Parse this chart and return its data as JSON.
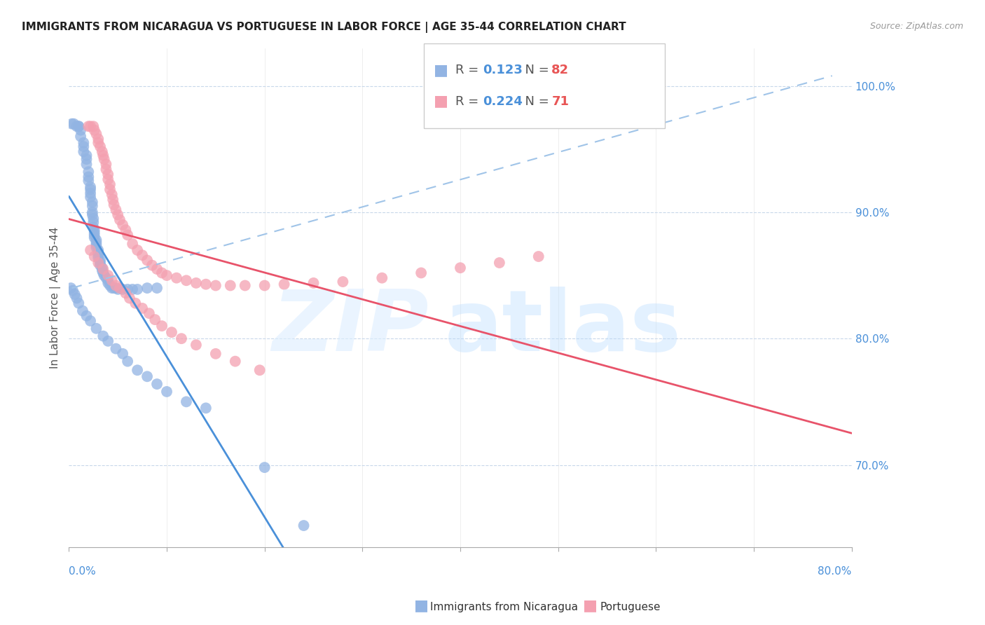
{
  "title": "IMMIGRANTS FROM NICARAGUA VS PORTUGUESE IN LABOR FORCE | AGE 35-44 CORRELATION CHART",
  "source": "Source: ZipAtlas.com",
  "ylabel": "In Labor Force | Age 35-44",
  "right_yticks": [
    0.7,
    0.8,
    0.9,
    1.0
  ],
  "right_yticklabels": [
    "70.0%",
    "80.0%",
    "90.0%",
    "100.0%"
  ],
  "xlim": [
    0.0,
    0.8
  ],
  "ylim": [
    0.635,
    1.03
  ],
  "nicaragua_R": 0.123,
  "nicaragua_N": 82,
  "portuguese_R": 0.224,
  "portuguese_N": 71,
  "nicaragua_color": "#92b4e3",
  "portuguese_color": "#f4a0b0",
  "nicaragua_line_color": "#4a90d9",
  "portuguese_line_color": "#e8536a",
  "dashed_line_color": "#a0c4e8",
  "legend_nicaragua_label": "Immigrants from Nicaragua",
  "legend_portuguese_label": "Portuguese",
  "nicaragua_x": [
    0.003,
    0.005,
    0.008,
    0.01,
    0.01,
    0.012,
    0.012,
    0.015,
    0.015,
    0.015,
    0.018,
    0.018,
    0.018,
    0.02,
    0.02,
    0.02,
    0.022,
    0.022,
    0.022,
    0.022,
    0.024,
    0.024,
    0.024,
    0.024,
    0.025,
    0.025,
    0.025,
    0.026,
    0.026,
    0.026,
    0.026,
    0.028,
    0.028,
    0.028,
    0.028,
    0.03,
    0.03,
    0.03,
    0.03,
    0.032,
    0.032,
    0.032,
    0.034,
    0.034,
    0.035,
    0.036,
    0.038,
    0.04,
    0.04,
    0.042,
    0.044,
    0.046,
    0.048,
    0.05,
    0.055,
    0.06,
    0.065,
    0.07,
    0.08,
    0.09,
    0.002,
    0.004,
    0.006,
    0.008,
    0.01,
    0.014,
    0.018,
    0.022,
    0.028,
    0.035,
    0.04,
    0.048,
    0.055,
    0.06,
    0.07,
    0.08,
    0.09,
    0.1,
    0.12,
    0.14,
    0.2,
    0.24
  ],
  "nicaragua_y": [
    0.97,
    0.97,
    0.968,
    0.968,
    0.968,
    0.965,
    0.96,
    0.955,
    0.952,
    0.948,
    0.945,
    0.942,
    0.938,
    0.932,
    0.928,
    0.925,
    0.92,
    0.918,
    0.915,
    0.912,
    0.908,
    0.905,
    0.9,
    0.898,
    0.895,
    0.892,
    0.888,
    0.886,
    0.884,
    0.882,
    0.88,
    0.878,
    0.876,
    0.874,
    0.872,
    0.87,
    0.868,
    0.866,
    0.864,
    0.862,
    0.86,
    0.858,
    0.856,
    0.854,
    0.852,
    0.85,
    0.848,
    0.846,
    0.844,
    0.842,
    0.84,
    0.84,
    0.84,
    0.839,
    0.839,
    0.839,
    0.839,
    0.839,
    0.84,
    0.84,
    0.84,
    0.838,
    0.835,
    0.832,
    0.828,
    0.822,
    0.818,
    0.814,
    0.808,
    0.802,
    0.798,
    0.792,
    0.788,
    0.782,
    0.775,
    0.77,
    0.764,
    0.758,
    0.75,
    0.745,
    0.698,
    0.652
  ],
  "portuguese_x": [
    0.02,
    0.022,
    0.025,
    0.026,
    0.028,
    0.03,
    0.03,
    0.032,
    0.034,
    0.035,
    0.036,
    0.038,
    0.038,
    0.04,
    0.04,
    0.042,
    0.042,
    0.044,
    0.045,
    0.046,
    0.048,
    0.05,
    0.052,
    0.055,
    0.058,
    0.06,
    0.065,
    0.07,
    0.075,
    0.08,
    0.085,
    0.09,
    0.095,
    0.1,
    0.11,
    0.12,
    0.13,
    0.14,
    0.15,
    0.165,
    0.18,
    0.2,
    0.22,
    0.25,
    0.28,
    0.32,
    0.36,
    0.4,
    0.44,
    0.48,
    0.022,
    0.026,
    0.03,
    0.035,
    0.04,
    0.044,
    0.048,
    0.052,
    0.058,
    0.062,
    0.068,
    0.075,
    0.082,
    0.088,
    0.095,
    0.105,
    0.115,
    0.13,
    0.15,
    0.17,
    0.195
  ],
  "portuguese_y": [
    0.968,
    0.968,
    0.968,
    0.965,
    0.962,
    0.958,
    0.955,
    0.952,
    0.948,
    0.945,
    0.942,
    0.938,
    0.934,
    0.93,
    0.926,
    0.922,
    0.918,
    0.914,
    0.91,
    0.906,
    0.902,
    0.898,
    0.894,
    0.89,
    0.886,
    0.882,
    0.875,
    0.87,
    0.866,
    0.862,
    0.858,
    0.855,
    0.852,
    0.85,
    0.848,
    0.846,
    0.844,
    0.843,
    0.842,
    0.842,
    0.842,
    0.842,
    0.843,
    0.844,
    0.845,
    0.848,
    0.852,
    0.856,
    0.86,
    0.865,
    0.87,
    0.865,
    0.86,
    0.855,
    0.85,
    0.846,
    0.842,
    0.84,
    0.836,
    0.832,
    0.828,
    0.824,
    0.82,
    0.815,
    0.81,
    0.805,
    0.8,
    0.795,
    0.788,
    0.782,
    0.775
  ]
}
